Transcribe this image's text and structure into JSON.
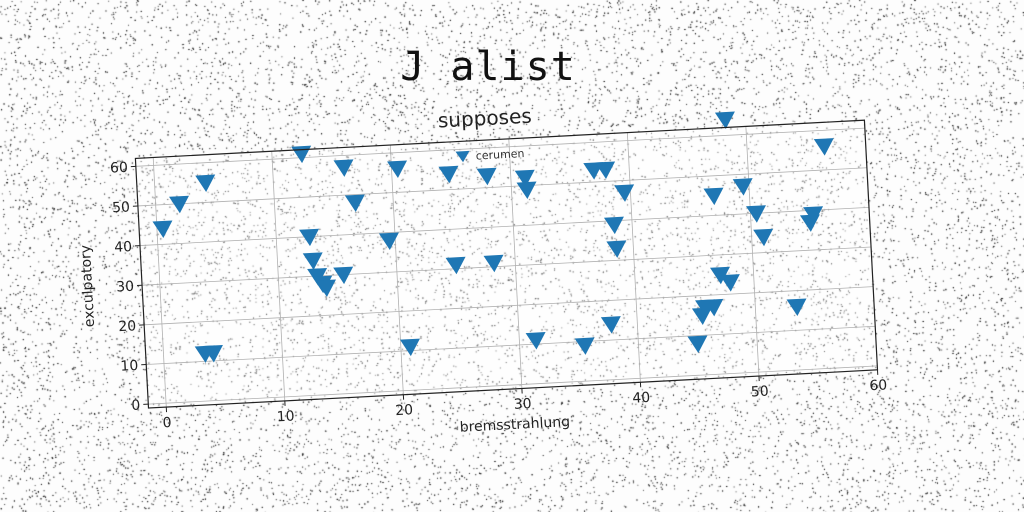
{
  "suptitle": "J alist",
  "chart_data": {
    "type": "scatter",
    "title": "supposes",
    "xlabel": "bremsstrahlung",
    "ylabel": "exculpatory",
    "xlim": [
      -1.5,
      60
    ],
    "ylim": [
      -1,
      62
    ],
    "xticks": [
      0,
      10,
      20,
      30,
      40,
      50,
      60
    ],
    "yticks": [
      0,
      10,
      20,
      30,
      40,
      50,
      60
    ],
    "grid": true,
    "legend": "top-center",
    "marker": "triangle-down",
    "color": "#1f77b4",
    "series": [
      {
        "name": "cerumen",
        "points": [
          [
            0.5,
            44
          ],
          [
            2,
            50
          ],
          [
            4.3,
            55
          ],
          [
            3.5,
            12
          ],
          [
            4.2,
            12
          ],
          [
            12.5,
            61
          ],
          [
            12.8,
            40
          ],
          [
            13,
            34
          ],
          [
            13.3,
            30
          ],
          [
            13.7,
            28
          ],
          [
            14,
            27
          ],
          [
            15.5,
            30
          ],
          [
            16,
            57
          ],
          [
            16.8,
            48
          ],
          [
            19.5,
            38
          ],
          [
            20.5,
            56
          ],
          [
            20.8,
            11
          ],
          [
            24.8,
            54
          ],
          [
            25,
            31
          ],
          [
            28,
            53
          ],
          [
            28.2,
            31
          ],
          [
            31.2,
            52
          ],
          [
            31.3,
            49
          ],
          [
            31.4,
            11
          ],
          [
            35.5,
            9
          ],
          [
            37,
            53
          ],
          [
            38,
            53
          ],
          [
            37.8,
            14
          ],
          [
            38.5,
            39
          ],
          [
            38.6,
            33
          ],
          [
            39.5,
            47
          ],
          [
            45,
            8
          ],
          [
            45.5,
            15
          ],
          [
            45.8,
            17
          ],
          [
            46.5,
            17
          ],
          [
            47,
            45
          ],
          [
            47.2,
            25
          ],
          [
            48,
            23
          ],
          [
            48.3,
            64
          ],
          [
            49.5,
            47
          ],
          [
            50.5,
            40
          ],
          [
            51,
            34
          ],
          [
            53.5,
            16
          ],
          [
            55,
            37
          ],
          [
            55.3,
            39
          ],
          [
            56.5,
            56
          ]
        ]
      }
    ]
  }
}
